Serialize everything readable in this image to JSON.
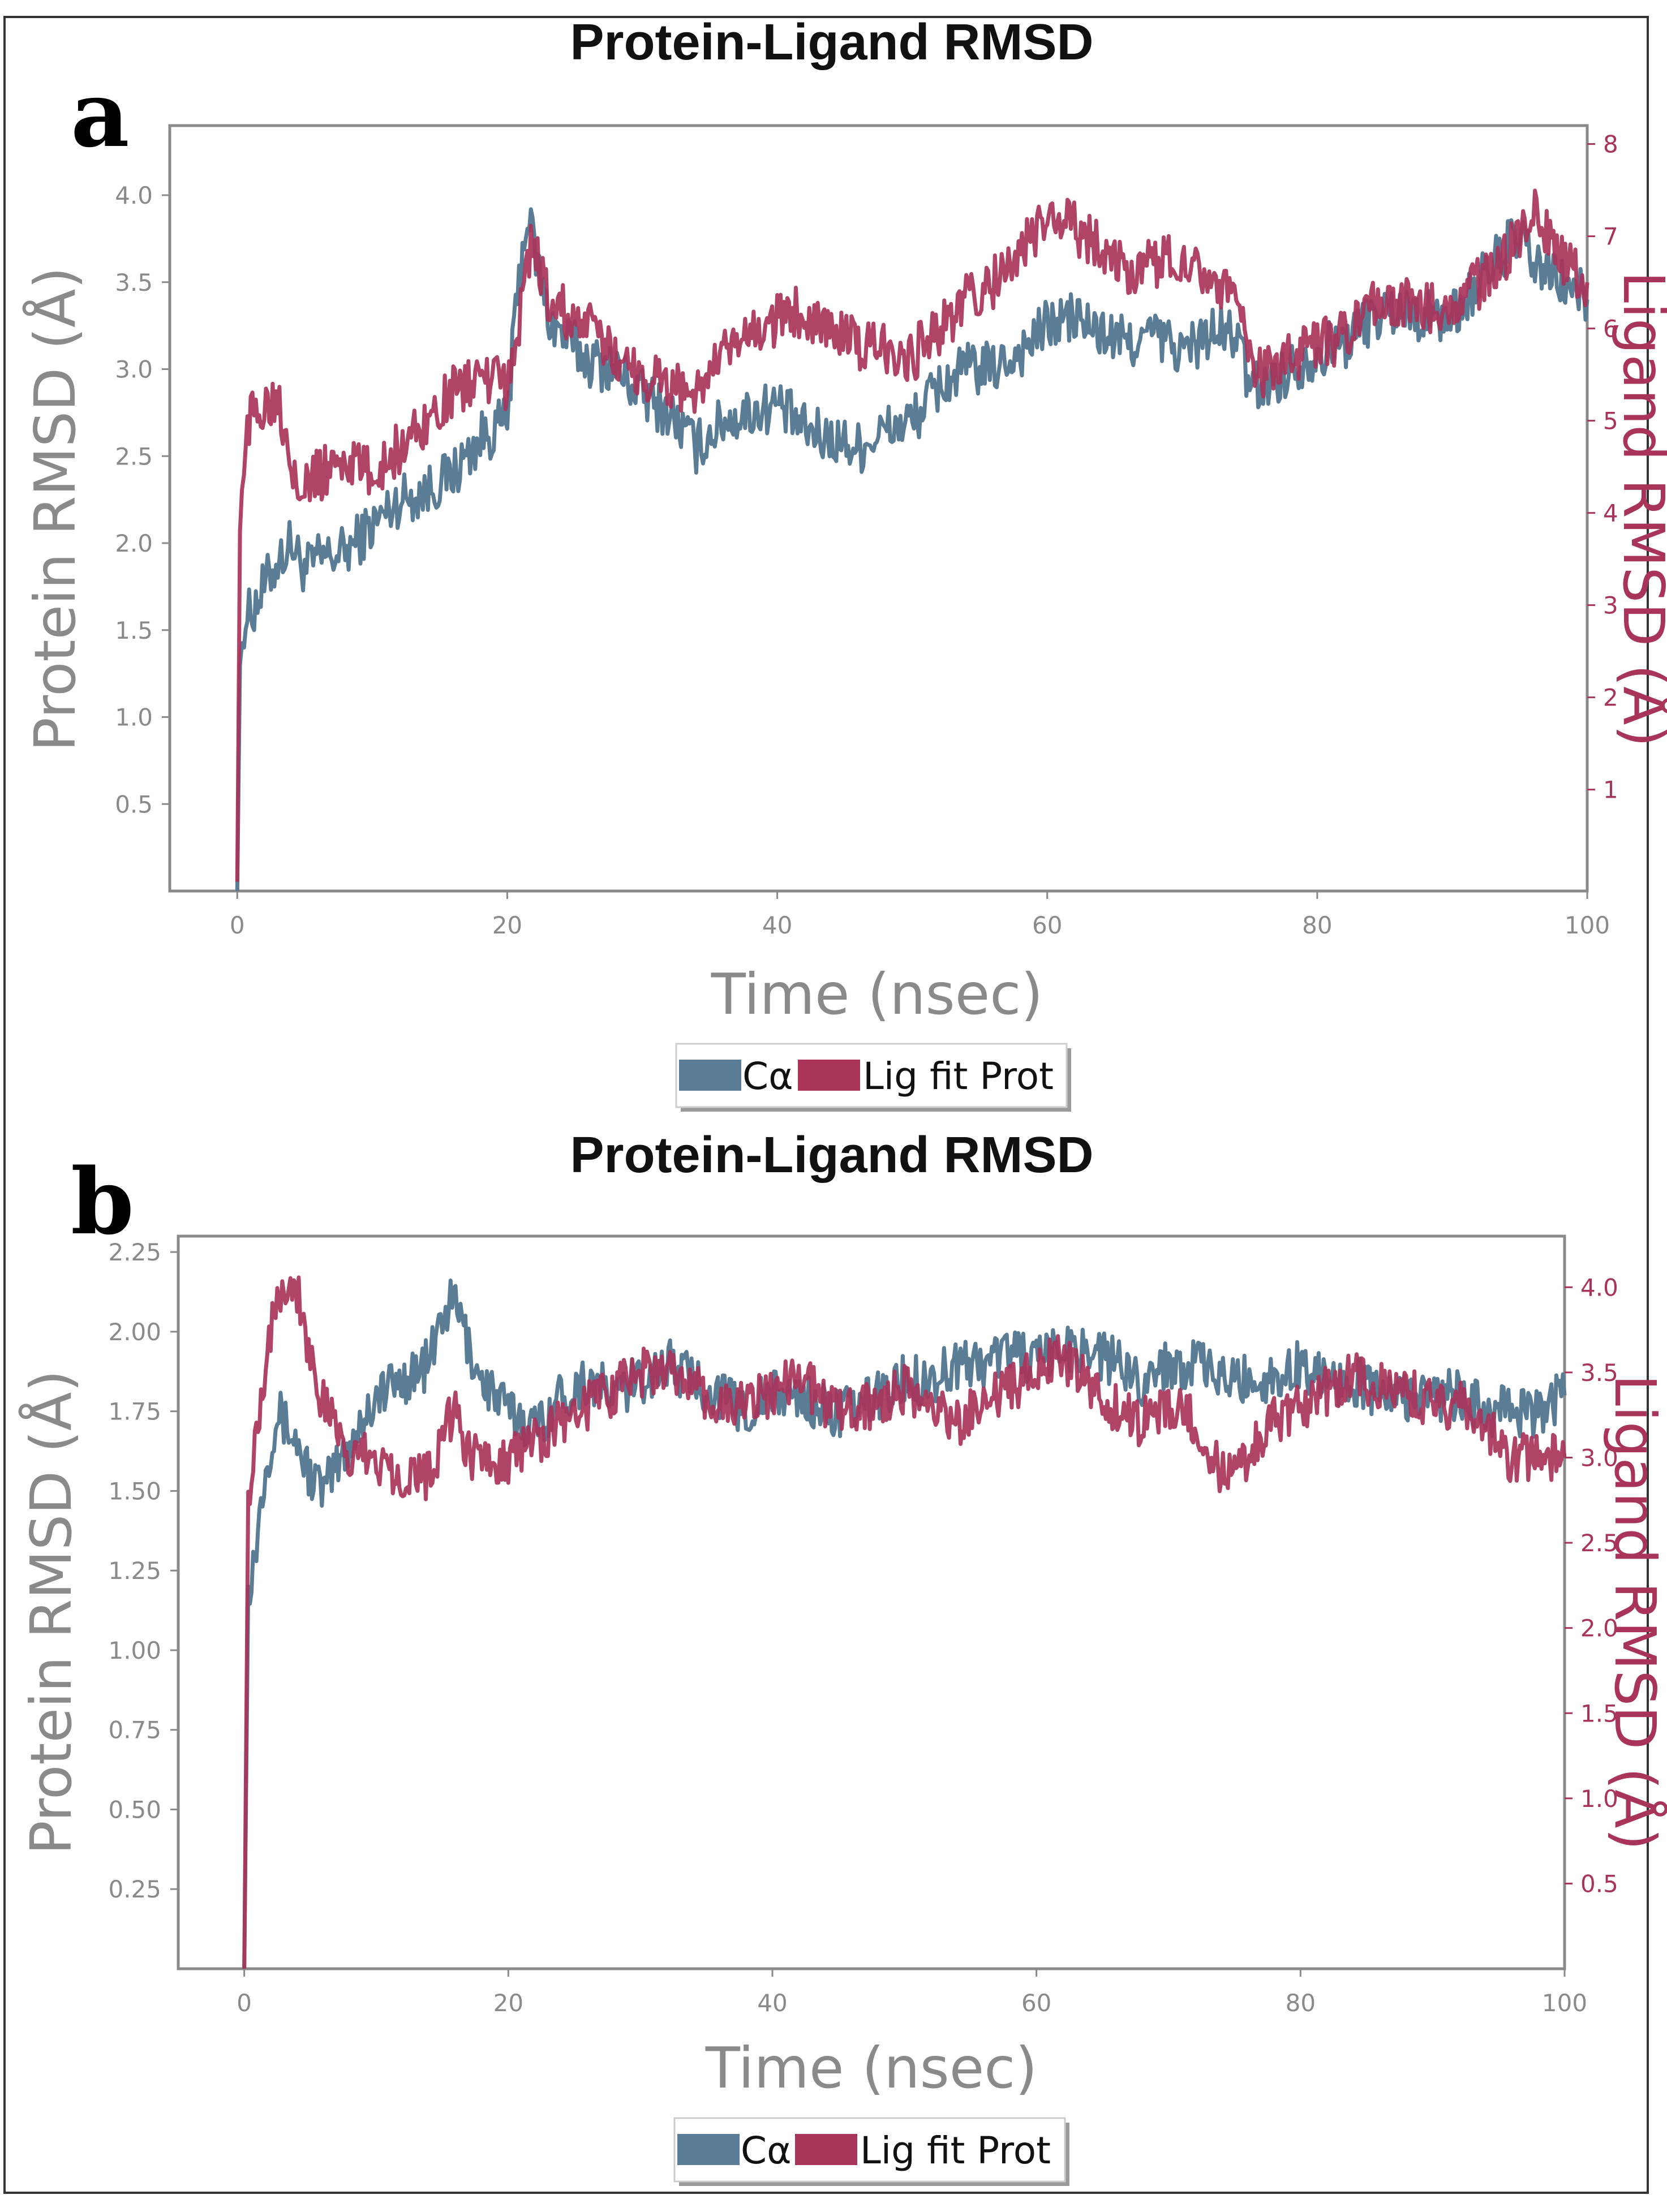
{
  "colors": {
    "protein": "#5a7d95",
    "ligand": "#a8345a",
    "axis": "#8a8a8a",
    "title": "#111111"
  },
  "chart_data": [
    {
      "panel": "a",
      "type": "line",
      "title": "Protein-Ligand RMSD",
      "xlabel": "Time (nsec)",
      "ylabel": "Protein RMSD (Å)",
      "y2label": "Ligand RMSD (Å)",
      "xlim": [
        -5,
        100
      ],
      "xticks": [
        0,
        20,
        40,
        60,
        80,
        100
      ],
      "ylim": [
        0,
        4.4
      ],
      "yticks": [
        "0.5",
        "1.0",
        "1.5",
        "2.0",
        "2.5",
        "3.0",
        "3.5",
        "4.0"
      ],
      "y2lim": [
        -0.1,
        8.2
      ],
      "y2ticks": [
        "1",
        "2",
        "3",
        "4",
        "5",
        "6",
        "7",
        "8"
      ],
      "legend": [
        "Cα",
        "Lig fit Prot"
      ],
      "legend_position": "below",
      "series": [
        {
          "name": "Cα",
          "axis": "left",
          "x": [
            0,
            0.2,
            0.5,
            1,
            2,
            3,
            4,
            5,
            6,
            8,
            10,
            12,
            14,
            16,
            18,
            19,
            20,
            20.5,
            21,
            21.5,
            22,
            23,
            24,
            26,
            28,
            30,
            32,
            34,
            36,
            38,
            40,
            42,
            44,
            46,
            48,
            50,
            52,
            54,
            56,
            58,
            60,
            62,
            64,
            66,
            68,
            70,
            72,
            74,
            75,
            76,
            78,
            80,
            82,
            84,
            86,
            88,
            90,
            92,
            94,
            95,
            96,
            98,
            100
          ],
          "y": [
            0,
            1.3,
            1.55,
            1.6,
            1.75,
            1.9,
            2.0,
            1.85,
            1.9,
            1.95,
            2.1,
            2.25,
            2.3,
            2.4,
            2.6,
            2.65,
            2.7,
            3.2,
            3.6,
            3.9,
            3.7,
            3.3,
            3.2,
            3.05,
            3.0,
            2.85,
            2.75,
            2.55,
            2.7,
            2.75,
            2.8,
            2.65,
            2.6,
            2.55,
            2.65,
            2.7,
            2.9,
            3.0,
            3.0,
            3.1,
            3.25,
            3.3,
            3.2,
            3.15,
            3.2,
            3.1,
            3.2,
            3.2,
            2.9,
            2.9,
            3.0,
            3.1,
            3.15,
            3.3,
            3.35,
            3.3,
            3.3,
            3.5,
            3.7,
            3.75,
            3.6,
            3.5,
            3.4
          ]
        },
        {
          "name": "Lig fit Prot",
          "axis": "right",
          "x": [
            0,
            0.2,
            0.5,
            1,
            2,
            3,
            4,
            5,
            6,
            8,
            10,
            12,
            14,
            16,
            18,
            19,
            20,
            20.5,
            21,
            21.5,
            22,
            23,
            24,
            26,
            28,
            30,
            32,
            34,
            36,
            38,
            40,
            42,
            44,
            46,
            48,
            50,
            52,
            54,
            56,
            58,
            60,
            62,
            64,
            66,
            68,
            70,
            72,
            74,
            75,
            76,
            78,
            80,
            82,
            84,
            86,
            88,
            90,
            92,
            94,
            95,
            96,
            98,
            100
          ],
          "y": [
            0,
            3.8,
            4.7,
            5.0,
            5.2,
            5.3,
            4.6,
            4.3,
            4.4,
            4.6,
            4.4,
            4.7,
            5.0,
            5.3,
            5.5,
            5.4,
            5.4,
            5.6,
            6.2,
            6.8,
            6.9,
            6.3,
            6.2,
            6.0,
            5.7,
            5.5,
            5.4,
            5.3,
            5.7,
            5.9,
            6.1,
            6.2,
            6.0,
            5.8,
            5.8,
            5.7,
            6.0,
            6.3,
            6.5,
            6.8,
            7.2,
            7.1,
            6.9,
            6.6,
            6.7,
            6.8,
            6.6,
            6.3,
            5.6,
            5.5,
            5.7,
            5.8,
            5.9,
            6.2,
            6.3,
            6.2,
            6.3,
            6.5,
            6.8,
            7.0,
            7.3,
            6.8,
            6.5
          ]
        }
      ]
    },
    {
      "panel": "b",
      "type": "line",
      "title": "Protein-Ligand RMSD",
      "xlabel": "Time (nsec)",
      "ylabel": "Protein RMSD (Å)",
      "y2label": "Ligand RMSD (Å)",
      "xlim": [
        -5,
        100
      ],
      "xticks": [
        0,
        20,
        40,
        60,
        80,
        100
      ],
      "ylim": [
        0,
        2.3
      ],
      "yticks": [
        "0.25",
        "0.50",
        "0.75",
        "1.00",
        "1.25",
        "1.50",
        "1.75",
        "2.00",
        "2.25"
      ],
      "y2lim": [
        0,
        4.3
      ],
      "y2ticks": [
        "0.5",
        "1.0",
        "1.5",
        "2.0",
        "2.5",
        "3.0",
        "3.5",
        "4.0"
      ],
      "legend": [
        "Cα",
        "Lig fit Prot"
      ],
      "legend_position": "below",
      "series": [
        {
          "name": "Cα",
          "axis": "left",
          "x": [
            0,
            0.3,
            0.8,
            1.5,
            2.5,
            4,
            5,
            6,
            8,
            10,
            12,
            14,
            15,
            16,
            17,
            18,
            20,
            22,
            24,
            26,
            28,
            30,
            32,
            34,
            36,
            38,
            40,
            42,
            44,
            46,
            48,
            50,
            52,
            54,
            56,
            58,
            60,
            62,
            64,
            66,
            68,
            70,
            72,
            74,
            76,
            78,
            80,
            82,
            84,
            86,
            88,
            90,
            92,
            94,
            96,
            98,
            100
          ],
          "y": [
            0,
            1.2,
            1.3,
            1.55,
            1.75,
            1.65,
            1.55,
            1.5,
            1.65,
            1.8,
            1.85,
            1.9,
            2.05,
            2.1,
            1.95,
            1.85,
            1.75,
            1.7,
            1.8,
            1.85,
            1.8,
            1.85,
            1.9,
            1.85,
            1.8,
            1.75,
            1.8,
            1.8,
            1.75,
            1.75,
            1.8,
            1.85,
            1.85,
            1.9,
            1.9,
            1.95,
            1.9,
            1.95,
            1.95,
            1.9,
            1.85,
            1.9,
            1.9,
            1.85,
            1.85,
            1.85,
            1.9,
            1.85,
            1.85,
            1.8,
            1.8,
            1.8,
            1.8,
            1.75,
            1.75,
            1.75,
            1.8
          ]
        },
        {
          "name": "Lig fit Prot",
          "axis": "right",
          "x": [
            0,
            0.3,
            0.8,
            1.5,
            2.5,
            4,
            5,
            6,
            8,
            10,
            12,
            14,
            15,
            16,
            17,
            18,
            20,
            22,
            24,
            26,
            28,
            30,
            32,
            34,
            36,
            38,
            40,
            42,
            44,
            46,
            48,
            50,
            52,
            54,
            56,
            58,
            60,
            62,
            64,
            66,
            68,
            70,
            72,
            74,
            76,
            78,
            80,
            82,
            84,
            86,
            88,
            90,
            92,
            94,
            96,
            98,
            100
          ],
          "y": [
            0,
            2.8,
            3.1,
            3.5,
            4.0,
            4.0,
            3.6,
            3.3,
            3.0,
            3.0,
            2.9,
            2.9,
            3.1,
            3.3,
            3.0,
            3.0,
            3.0,
            3.1,
            3.2,
            3.3,
            3.4,
            3.5,
            3.5,
            3.4,
            3.3,
            3.3,
            3.4,
            3.5,
            3.3,
            3.3,
            3.3,
            3.4,
            3.3,
            3.2,
            3.3,
            3.4,
            3.5,
            3.6,
            3.4,
            3.3,
            3.2,
            3.3,
            3.2,
            2.9,
            3.0,
            3.2,
            3.3,
            3.4,
            3.5,
            3.4,
            3.4,
            3.3,
            3.3,
            3.2,
            3.0,
            3.0,
            3.0
          ]
        }
      ]
    }
  ]
}
